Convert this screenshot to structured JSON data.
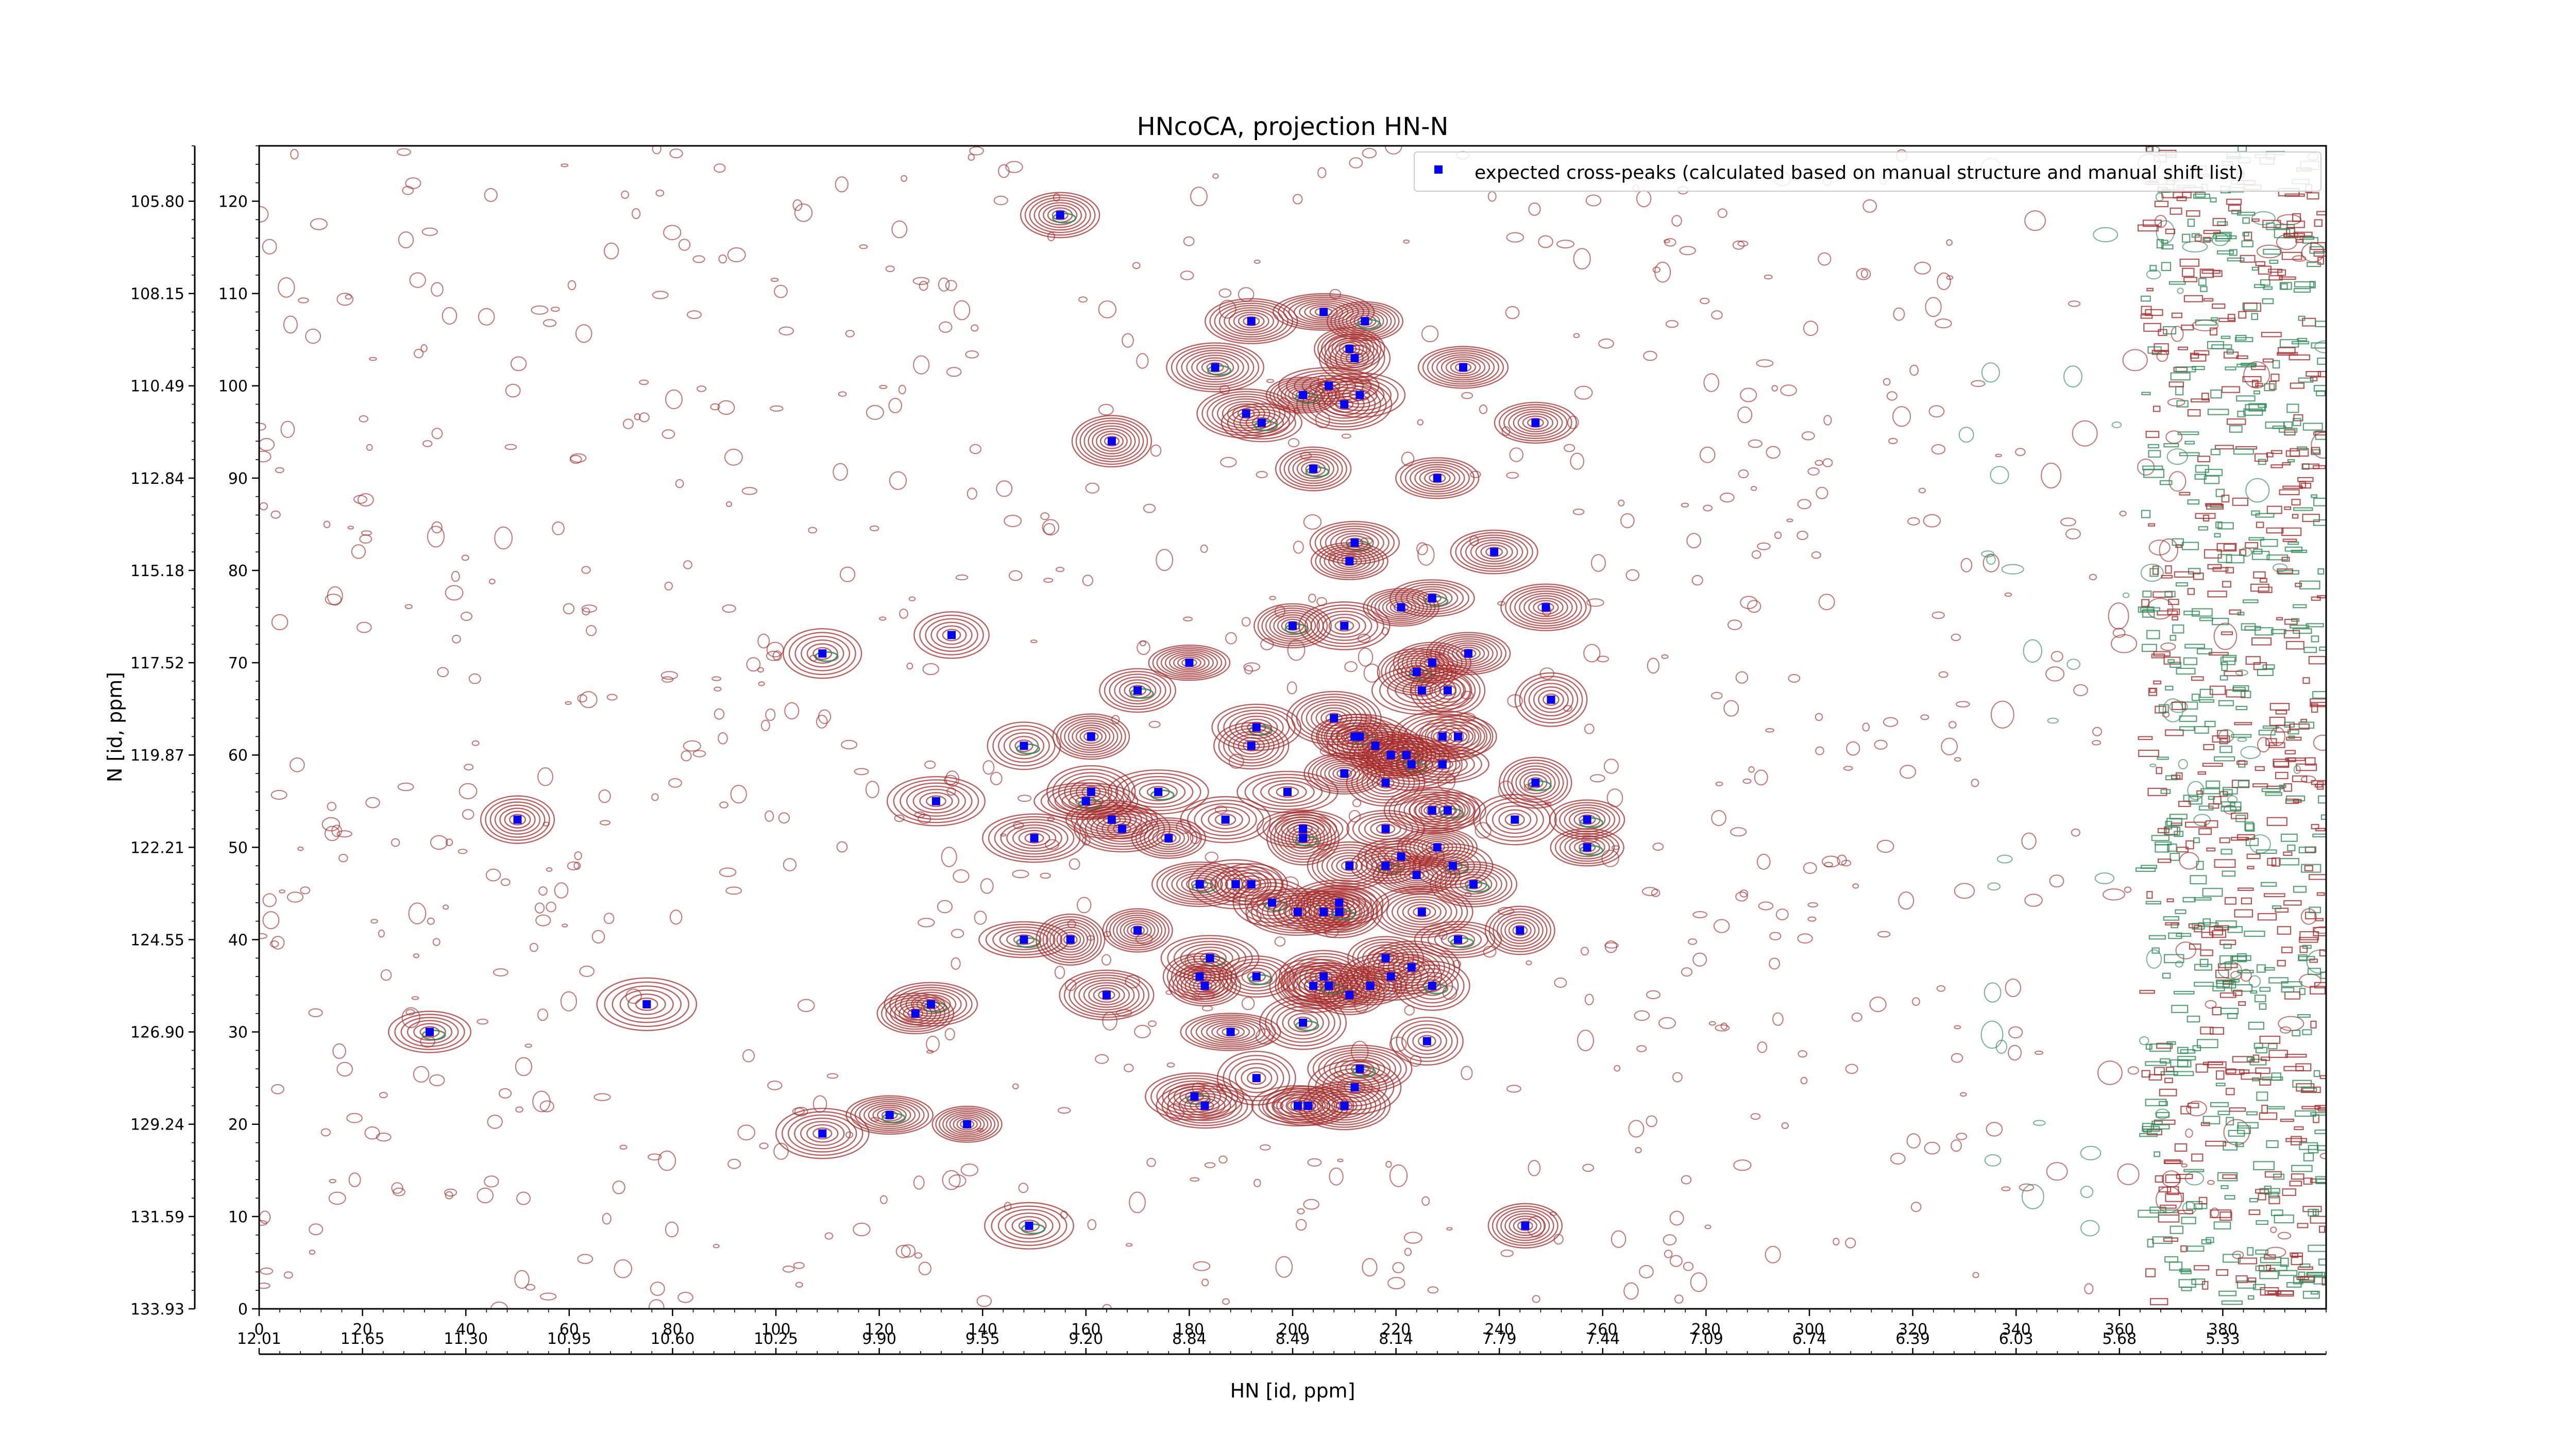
{
  "chart_data": {
    "type": "scatter",
    "title": "HNcoCA, projection HN-N",
    "xlabel": "HN [id, ppm]",
    "ylabel": "N [id, ppm]",
    "xlim": [
      0,
      400
    ],
    "ylim": [
      0,
      126
    ],
    "grid": false,
    "legend_position": "top-right",
    "x_ticks_primary": [
      "0",
      "20",
      "40",
      "60",
      "80",
      "100",
      "120",
      "140",
      "160",
      "180",
      "200",
      "220",
      "240",
      "260",
      "280",
      "300",
      "320",
      "340",
      "360",
      "380"
    ],
    "x_ticks_secondary": [
      "12.01",
      "11.65",
      "11.30",
      "10.95",
      "10.60",
      "10.25",
      "9.90",
      "9.55",
      "9.20",
      "8.84",
      "8.49",
      "8.14",
      "7.79",
      "7.44",
      "7.09",
      "6.74",
      "6.39",
      "6.03",
      "5.68",
      "5.33"
    ],
    "y_ticks_primary": [
      "0",
      "10",
      "20",
      "30",
      "40",
      "50",
      "60",
      "70",
      "80",
      "90",
      "100",
      "110",
      "120"
    ],
    "y_ticks_secondary": [
      "133.93",
      "131.59",
      "129.24",
      "126.90",
      "124.55",
      "122.21",
      "119.87",
      "117.52",
      "115.18",
      "112.84",
      "110.49",
      "108.15",
      "105.80"
    ],
    "colors": {
      "contour_positive": "#a52a2a",
      "contour_negative": "#2e8b57",
      "peaks": "#0000ff"
    },
    "series": [
      {
        "name": "expected cross-peaks (calculated based on manual structure and manual shift list)",
        "points": [
          [
            155,
            118.5
          ],
          [
            192,
            107
          ],
          [
            206,
            108
          ],
          [
            214,
            107
          ],
          [
            211,
            104
          ],
          [
            212,
            103
          ],
          [
            185,
            102
          ],
          [
            213,
            99
          ],
          [
            207,
            100
          ],
          [
            202,
            99
          ],
          [
            210,
            98
          ],
          [
            191,
            97
          ],
          [
            194,
            96
          ],
          [
            247,
            96
          ],
          [
            165,
            94
          ],
          [
            204,
            91
          ],
          [
            228,
            90
          ],
          [
            233,
            102
          ],
          [
            212,
            83
          ],
          [
            211,
            81
          ],
          [
            239,
            82
          ],
          [
            227,
            77
          ],
          [
            221,
            76
          ],
          [
            249,
            76
          ],
          [
            200,
            74
          ],
          [
            210,
            74
          ],
          [
            134,
            73
          ],
          [
            109,
            71
          ],
          [
            234,
            71
          ],
          [
            227,
            70
          ],
          [
            224,
            69
          ],
          [
            225,
            67
          ],
          [
            230,
            67
          ],
          [
            170,
            67
          ],
          [
            180,
            70
          ],
          [
            250,
            66
          ],
          [
            193,
            63
          ],
          [
            208,
            64
          ],
          [
            212,
            62
          ],
          [
            213,
            62
          ],
          [
            216,
            61
          ],
          [
            219,
            60
          ],
          [
            222,
            60
          ],
          [
            229,
            62
          ],
          [
            232,
            62
          ],
          [
            148,
            61
          ],
          [
            161,
            62
          ],
          [
            192,
            61
          ],
          [
            223,
            59
          ],
          [
            229,
            59
          ],
          [
            210,
            58
          ],
          [
            247,
            57
          ],
          [
            218,
            57
          ],
          [
            161,
            56
          ],
          [
            160,
            55
          ],
          [
            165,
            53
          ],
          [
            167,
            52
          ],
          [
            174,
            56
          ],
          [
            131,
            55
          ],
          [
            199,
            56
          ],
          [
            230,
            54
          ],
          [
            227,
            54
          ],
          [
            243,
            53
          ],
          [
            257,
            53
          ],
          [
            187,
            53
          ],
          [
            202,
            52
          ],
          [
            202,
            51
          ],
          [
            218,
            52
          ],
          [
            211,
            48
          ],
          [
            218,
            48
          ],
          [
            221,
            49
          ],
          [
            228,
            50
          ],
          [
            231,
            48
          ],
          [
            150,
            51
          ],
          [
            176,
            51
          ],
          [
            182,
            46
          ],
          [
            189,
            46
          ],
          [
            192,
            46
          ],
          [
            196,
            44
          ],
          [
            209,
            44
          ],
          [
            224,
            47
          ],
          [
            235,
            46
          ],
          [
            201,
            43
          ],
          [
            206,
            43
          ],
          [
            209,
            43
          ],
          [
            225,
            43
          ],
          [
            244,
            41
          ],
          [
            148,
            40
          ],
          [
            157,
            40
          ],
          [
            170,
            41
          ],
          [
            232,
            40
          ],
          [
            218,
            38
          ],
          [
            223,
            37
          ],
          [
            184,
            38
          ],
          [
            182,
            36
          ],
          [
            183,
            35
          ],
          [
            193,
            36
          ],
          [
            204,
            35
          ],
          [
            206,
            36
          ],
          [
            207,
            35
          ],
          [
            215,
            35
          ],
          [
            219,
            36
          ],
          [
            227,
            35
          ],
          [
            164,
            34
          ],
          [
            211,
            34
          ],
          [
            130,
            33
          ],
          [
            127,
            32
          ],
          [
            75,
            33
          ],
          [
            33,
            30
          ],
          [
            188,
            30
          ],
          [
            226,
            29
          ],
          [
            202,
            31
          ],
          [
            212,
            24
          ],
          [
            210,
            22
          ],
          [
            181,
            23
          ],
          [
            183,
            22
          ],
          [
            193,
            25
          ],
          [
            213,
            26
          ],
          [
            201,
            22
          ],
          [
            203,
            22
          ],
          [
            122,
            21
          ],
          [
            137,
            20
          ],
          [
            109,
            19
          ],
          [
            149,
            9
          ],
          [
            245,
            9
          ],
          [
            50,
            53
          ],
          [
            257,
            50
          ]
        ]
      }
    ]
  }
}
